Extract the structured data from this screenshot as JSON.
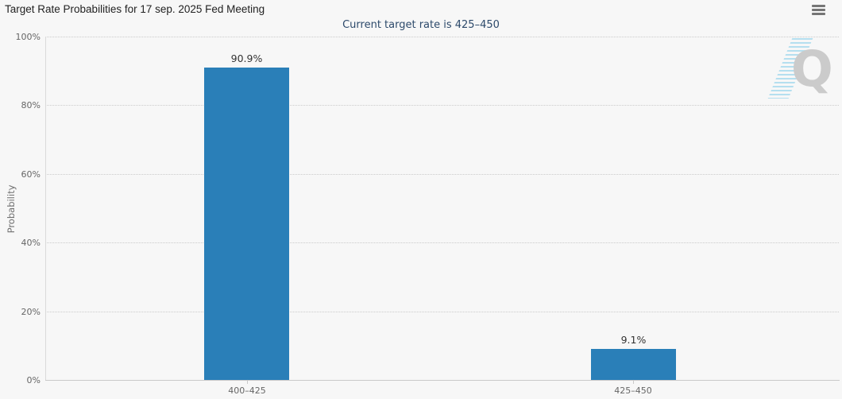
{
  "header": {
    "title": "Target Rate Probabilities for 17 sep. 2025 Fed Meeting",
    "subtitle": "Current target rate is 425–450",
    "menu_icon": "hamburger-menu-icon"
  },
  "watermark": {
    "letter": "Q"
  },
  "colors": {
    "background": "#f7f7f7",
    "bar": "#2a7fb8",
    "subtitle": "#2d4a6b",
    "gridline": "#cbcbcb",
    "tick_label": "#666666",
    "title": "#222222"
  },
  "chart_data": {
    "type": "bar",
    "title": "Target Rate Probabilities for 17 sep. 2025 Fed Meeting",
    "subtitle": "Current target rate is 425–450",
    "categories": [
      "400–425",
      "425–450"
    ],
    "values": [
      90.9,
      9.1
    ],
    "data_labels": [
      "90.9%",
      "9.1%"
    ],
    "xlabel": "",
    "ylabel": "Probability",
    "yticks": [
      "0%",
      "20%",
      "40%",
      "60%",
      "80%",
      "100%"
    ],
    "ylim": [
      0,
      100
    ],
    "grid": "horizontal-dotted",
    "legend": "none",
    "bar_color": "#2a7fb8"
  }
}
